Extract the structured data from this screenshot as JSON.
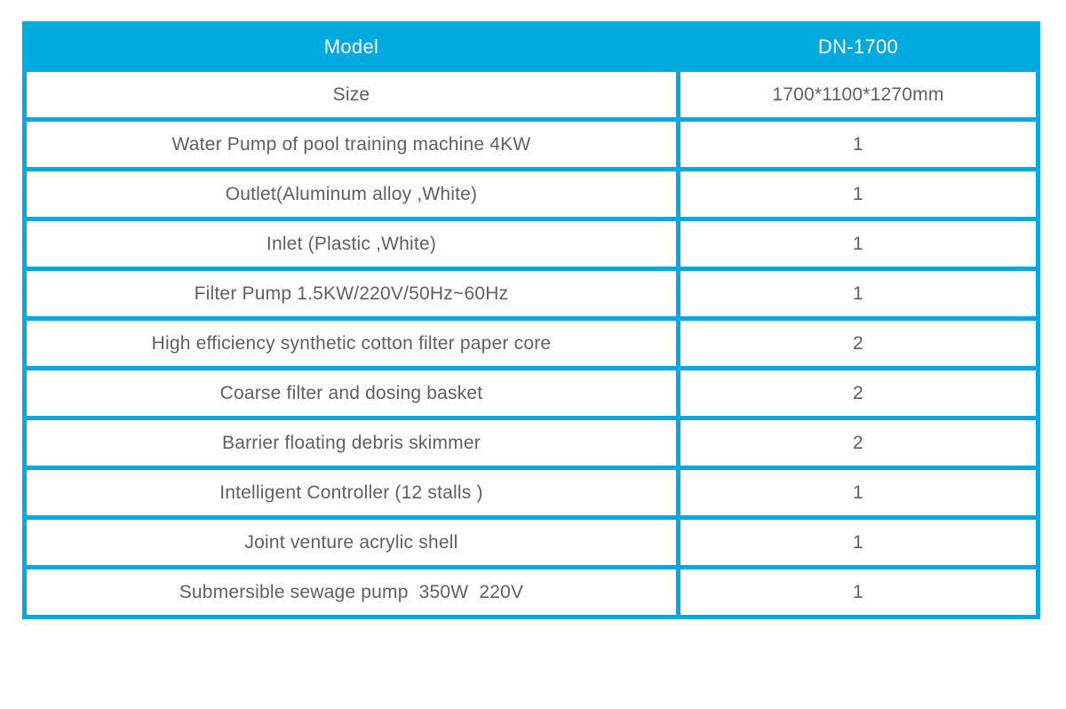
{
  "table": {
    "header": {
      "model_label": "Model",
      "model_value": "DN-1700"
    },
    "rows": [
      {
        "label": "Size",
        "value": "1700*1100*1270mm"
      },
      {
        "label": "Water Pump of pool training machine 4KW",
        "value": "1"
      },
      {
        "label": "Outlet(Aluminum alloy ,White)",
        "value": "1"
      },
      {
        "label": "Inlet (Plastic ,White)",
        "value": "1"
      },
      {
        "label": "Filter Pump 1.5KW/220V/50Hz~60Hz",
        "value": "1"
      },
      {
        "label": "High efficiency synthetic cotton filter paper core",
        "value": "2"
      },
      {
        "label": "Coarse filter and dosing basket",
        "value": "2"
      },
      {
        "label": "Barrier floating debris skimmer",
        "value": "2"
      },
      {
        "label": "Intelligent Controller (12 stalls )",
        "value": "1"
      },
      {
        "label": "Joint venture acrylic shell",
        "value": "1"
      },
      {
        "label": "Submersible sewage pump  350W  220V",
        "value": "1"
      }
    ],
    "accent_color": "#00a9e0",
    "text_color": "#5f6062"
  }
}
